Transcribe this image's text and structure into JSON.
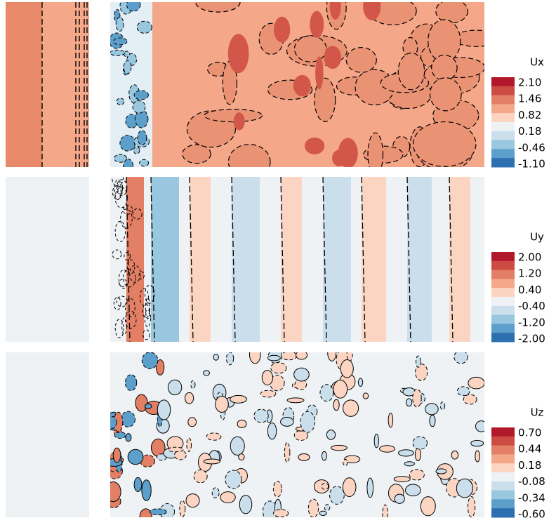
{
  "panels": [
    {
      "label": "Ux",
      "ticks": [
        "2.10",
        "1.46",
        "0.82",
        "0.18",
        "-0.46",
        "-1.10"
      ]
    },
    {
      "label": "Uy",
      "ticks": [
        "2.00",
        "1.20",
        "0.40",
        "-0.40",
        "-1.20",
        "-2.00"
      ]
    },
    {
      "label": "Uz",
      "ticks": [
        "0.70",
        "0.44",
        "0.18",
        "-0.08",
        "-0.34",
        "-0.60"
      ]
    }
  ]
}
